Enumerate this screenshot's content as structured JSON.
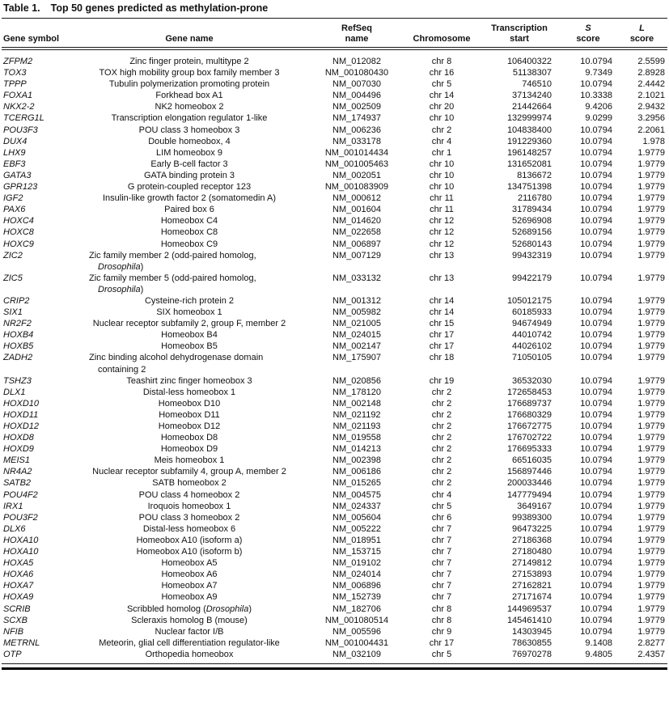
{
  "table": {
    "title_label": "Table 1.",
    "title_text": "Top 50 genes predicted as methylation-prone",
    "italic_terms": [
      "Drosophila"
    ],
    "columns": [
      {
        "key": "gene_symbol",
        "line1": "Gene symbol"
      },
      {
        "key": "gene_name",
        "line1": "Gene name"
      },
      {
        "key": "refseq_name",
        "line1": "RefSeq",
        "line2": "name"
      },
      {
        "key": "chromosome",
        "line1": "Chromosome"
      },
      {
        "key": "transcription_start",
        "line1": "Transcription",
        "line2": "start"
      },
      {
        "key": "s_score",
        "line1": "S",
        "line2": "score",
        "line1_italic": true
      },
      {
        "key": "l_score",
        "line1": "L",
        "line2": "score",
        "line1_italic": true
      }
    ],
    "rows": [
      [
        "ZFPM2",
        "Zinc finger protein, multitype 2",
        "NM_012082",
        "chr 8",
        "106400322",
        "10.0794",
        "2.5599"
      ],
      [
        "TOX3",
        "TOX high mobility group box family member 3",
        "NM_001080430",
        "chr 16",
        "51138307",
        "9.7349",
        "2.8928"
      ],
      [
        "TPPP",
        "Tubulin polymerization promoting protein",
        "NM_007030",
        "chr 5",
        "746510",
        "10.0794",
        "2.4442"
      ],
      [
        "FOXA1",
        "Forkhead box A1",
        "NM_004496",
        "chr 14",
        "37134240",
        "10.3338",
        "2.1021"
      ],
      [
        "NKX2-2",
        "NK2 homeobox 2",
        "NM_002509",
        "chr 20",
        "21442664",
        "9.4206",
        "2.9432"
      ],
      [
        "TCERG1L",
        "Transcription elongation regulator 1-like",
        "NM_174937",
        "chr 10",
        "132999974",
        "9.0299",
        "3.2956"
      ],
      [
        "POU3F3",
        "POU class 3 homeobox 3",
        "NM_006236",
        "chr 2",
        "104838400",
        "10.0794",
        "2.2061"
      ],
      [
        "DUX4",
        "Double homeobox, 4",
        "NM_033178",
        "chr 4",
        "191229360",
        "10.0794",
        "1.978"
      ],
      [
        "LHX9",
        "LIM homeobox 9",
        "NM_001014434",
        "chr 1",
        "196148257",
        "10.0794",
        "1.9779"
      ],
      [
        "EBF3",
        "Early B-cell factor 3",
        "NM_001005463",
        "chr 10",
        "131652081",
        "10.0794",
        "1.9779"
      ],
      [
        "GATA3",
        "GATA binding protein 3",
        "NM_002051",
        "chr 10",
        "8136672",
        "10.0794",
        "1.9779"
      ],
      [
        "GPR123",
        "G protein-coupled receptor 123",
        "NM_001083909",
        "chr 10",
        "134751398",
        "10.0794",
        "1.9779"
      ],
      [
        "IGF2",
        "Insulin-like growth factor 2 (somatomedin A)",
        "NM_000612",
        "chr 11",
        "2116780",
        "10.0794",
        "1.9779"
      ],
      [
        "PAX6",
        "Paired box 6",
        "NM_001604",
        "chr 11",
        "31789434",
        "10.0794",
        "1.9779"
      ],
      [
        "HOXC4",
        "Homeobox C4",
        "NM_014620",
        "chr 12",
        "52696908",
        "10.0794",
        "1.9779"
      ],
      [
        "HOXC8",
        "Homeobox C8",
        "NM_022658",
        "chr 12",
        "52689156",
        "10.0794",
        "1.9779"
      ],
      [
        "HOXC9",
        "Homeobox C9",
        "NM_006897",
        "chr 12",
        "52680143",
        "10.0794",
        "1.9779"
      ],
      [
        "ZIC2",
        "Zic family member 2 (odd-paired homolog, Drosophila)",
        "NM_007129",
        "chr 13",
        "99432319",
        "10.0794",
        "1.9779"
      ],
      [
        "ZIC5",
        "Zic family member 5 (odd-paired homolog, Drosophila)",
        "NM_033132",
        "chr 13",
        "99422179",
        "10.0794",
        "1.9779"
      ],
      [
        "CRIP2",
        "Cysteine-rich protein 2",
        "NM_001312",
        "chr 14",
        "105012175",
        "10.0794",
        "1.9779"
      ],
      [
        "SIX1",
        "SIX homeobox 1",
        "NM_005982",
        "chr 14",
        "60185933",
        "10.0794",
        "1.9779"
      ],
      [
        "NR2F2",
        "Nuclear receptor subfamily 2, group F, member 2",
        "NM_021005",
        "chr 15",
        "94674949",
        "10.0794",
        "1.9779"
      ],
      [
        "HOXB4",
        "Homeobox B4",
        "NM_024015",
        "chr 17",
        "44010742",
        "10.0794",
        "1.9779"
      ],
      [
        "HOXB5",
        "Homeobox B5",
        "NM_002147",
        "chr 17",
        "44026102",
        "10.0794",
        "1.9779"
      ],
      [
        "ZADH2",
        "Zinc binding alcohol dehydrogenase domain containing 2",
        "NM_175907",
        "chr 18",
        "71050105",
        "10.0794",
        "1.9779"
      ],
      [
        "TSHZ3",
        "Teashirt zinc finger homeobox 3",
        "NM_020856",
        "chr 19",
        "36532030",
        "10.0794",
        "1.9779"
      ],
      [
        "DLX1",
        "Distal-less homeobox 1",
        "NM_178120",
        "chr 2",
        "172658453",
        "10.0794",
        "1.9779"
      ],
      [
        "HOXD10",
        "Homeobox D10",
        "NM_002148",
        "chr 2",
        "176689737",
        "10.0794",
        "1.9779"
      ],
      [
        "HOXD11",
        "Homeobox D11",
        "NM_021192",
        "chr 2",
        "176680329",
        "10.0794",
        "1.9779"
      ],
      [
        "HOXD12",
        "Homeobox D12",
        "NM_021193",
        "chr 2",
        "176672775",
        "10.0794",
        "1.9779"
      ],
      [
        "HOXD8",
        "Homeobox D8",
        "NM_019558",
        "chr 2",
        "176702722",
        "10.0794",
        "1.9779"
      ],
      [
        "HOXD9",
        "Homeobox D9",
        "NM_014213",
        "chr 2",
        "176695333",
        "10.0794",
        "1.9779"
      ],
      [
        "MEIS1",
        "Meis homeobox 1",
        "NM_002398",
        "chr 2",
        "66516035",
        "10.0794",
        "1.9779"
      ],
      [
        "NR4A2",
        "Nuclear receptor subfamily 4, group A, member 2",
        "NM_006186",
        "chr 2",
        "156897446",
        "10.0794",
        "1.9779"
      ],
      [
        "SATB2",
        "SATB homeobox 2",
        "NM_015265",
        "chr 2",
        "200033446",
        "10.0794",
        "1.9779"
      ],
      [
        "POU4F2",
        "POU class 4 homeobox 2",
        "NM_004575",
        "chr 4",
        "147779494",
        "10.0794",
        "1.9779"
      ],
      [
        "IRX1",
        "Iroquois homeobox 1",
        "NM_024337",
        "chr 5",
        "3649167",
        "10.0794",
        "1.9779"
      ],
      [
        "POU3F2",
        "POU class 3 homeobox 2",
        "NM_005604",
        "chr 6",
        "99389300",
        "10.0794",
        "1.9779"
      ],
      [
        "DLX6",
        "Distal-less homeobox 6",
        "NM_005222",
        "chr 7",
        "96473225",
        "10.0794",
        "1.9779"
      ],
      [
        "HOXA10",
        "Homeobox A10 (isoform a)",
        "NM_018951",
        "chr 7",
        "27186368",
        "10.0794",
        "1.9779"
      ],
      [
        "HOXA10",
        "Homeobox A10 (isoform b)",
        "NM_153715",
        "chr 7",
        "27180480",
        "10.0794",
        "1.9779"
      ],
      [
        "HOXA5",
        "Homeobox A5",
        "NM_019102",
        "chr 7",
        "27149812",
        "10.0794",
        "1.9779"
      ],
      [
        "HOXA6",
        "Homeobox A6",
        "NM_024014",
        "chr 7",
        "27153893",
        "10.0794",
        "1.9779"
      ],
      [
        "HOXA7",
        "Homeobox A7",
        "NM_006896",
        "chr 7",
        "27162821",
        "10.0794",
        "1.9779"
      ],
      [
        "HOXA9",
        "Homeobox A9",
        "NM_152739",
        "chr 7",
        "27171674",
        "10.0794",
        "1.9779"
      ],
      [
        "SCRIB",
        "Scribbled homolog (Drosophila)",
        "NM_182706",
        "chr 8",
        "144969537",
        "10.0794",
        "1.9779"
      ],
      [
        "SCXB",
        "Scleraxis homolog B (mouse)",
        "NM_001080514",
        "chr 8",
        "145461410",
        "10.0794",
        "1.9779"
      ],
      [
        "NFIB",
        "Nuclear factor I/B",
        "NM_005596",
        "chr 9",
        "14303945",
        "10.0794",
        "1.9779"
      ],
      [
        "METRNL",
        "Meteorin, glial cell differentiation regulator-like",
        "NM_001004431",
        "chr 17",
        "78630855",
        "9.1408",
        "2.8277"
      ],
      [
        "OTP",
        "Orthopedia homeobox",
        "NM_032109",
        "chr 5",
        "76970278",
        "9.4805",
        "2.4357"
      ]
    ]
  }
}
